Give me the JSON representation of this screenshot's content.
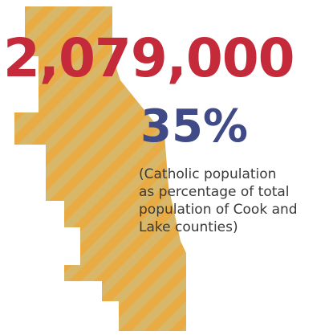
{
  "stat": {
    "population": "2,079,000",
    "percentage": "35%",
    "caption": "(Catholic population\nas percentage of total\npopulation of Cook and\nLake counties)"
  },
  "map": {
    "description_icon": "cook-lake-counties-map-icon"
  },
  "colors": {
    "number_red": "#c42a3a",
    "percent_blue": "#3f4a86",
    "caption_text": "#3a3a3a",
    "map_fill": "#d6b565",
    "map_stripe": "#e8a93d"
  }
}
